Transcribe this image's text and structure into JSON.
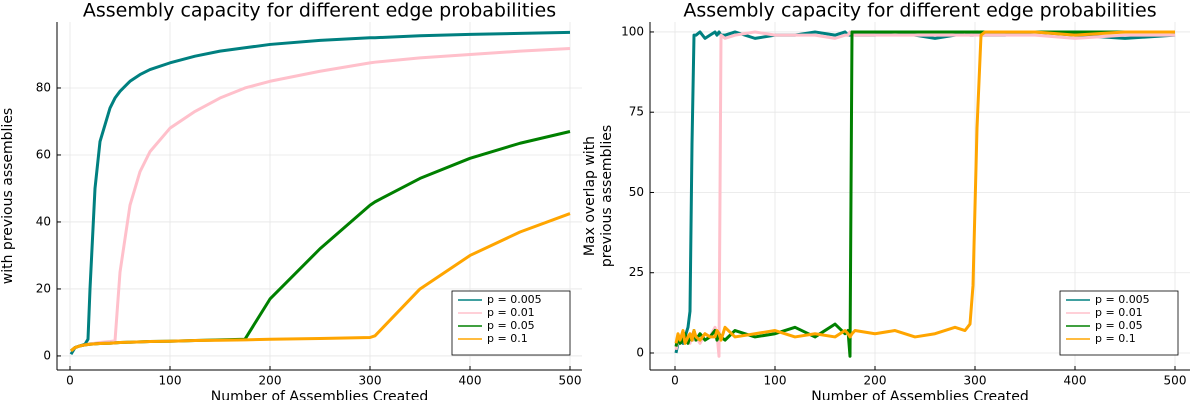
{
  "chart_data": [
    {
      "type": "line",
      "title": "Assembly capacity for different edge probabilities",
      "xlabel": "Number of Assemblies Created",
      "ylabel": [
        "with previous assemblies"
      ],
      "x": [
        1,
        5,
        10,
        15,
        18,
        20,
        25,
        30,
        40,
        45,
        50,
        60,
        70,
        80,
        100,
        125,
        150,
        175,
        200,
        250,
        300,
        305,
        350,
        400,
        450,
        500
      ],
      "series": [
        {
          "name": "p = 0.005",
          "color": "#008080",
          "values": [
            0.5,
            2.5,
            3,
            3.5,
            5,
            20,
            50,
            64,
            74,
            77,
            79,
            82,
            84,
            85.5,
            87.5,
            89.5,
            91,
            92,
            93,
            94.2,
            95,
            95,
            95.6,
            96,
            96.3,
            96.6
          ]
        },
        {
          "name": "p = 0.01",
          "color": "#ffc0cb",
          "values": [
            1.5,
            2.5,
            3,
            3.3,
            3.5,
            3.6,
            3.8,
            4,
            4.3,
            4.5,
            25,
            45,
            55,
            61,
            68,
            73,
            77,
            80,
            82,
            85,
            87.5,
            87.7,
            89,
            90,
            91,
            91.8
          ]
        },
        {
          "name": "p = 0.05",
          "color": "#008000",
          "values": [
            1.5,
            2.5,
            3,
            3.3,
            3.4,
            3.5,
            3.6,
            3.7,
            3.8,
            3.9,
            4,
            4.1,
            4.2,
            4.3,
            4.4,
            4.6,
            4.8,
            5,
            17,
            32,
            45,
            46,
            53,
            59,
            63.5,
            67
          ]
        },
        {
          "name": "p = 0.1",
          "color": "#ffa500",
          "values": [
            1.5,
            2.5,
            3,
            3.3,
            3.4,
            3.5,
            3.6,
            3.7,
            3.8,
            3.9,
            4,
            4.1,
            4.2,
            4.3,
            4.4,
            4.6,
            4.7,
            4.8,
            5,
            5.2,
            5.5,
            6,
            20,
            30,
            37,
            42.5
          ]
        }
      ],
      "xlim": [
        -13,
        512
      ],
      "xticks": [
        0,
        100,
        200,
        300,
        400,
        500
      ],
      "ylim": [
        -4.2,
        99.7
      ],
      "yticks": [
        0,
        20,
        40,
        60,
        80
      ],
      "grid": true,
      "legend": "bottom-right"
    },
    {
      "type": "line",
      "title": "Assembly capacity for different edge probabilities",
      "xlabel": "Number of Assemblies Created",
      "ylabel": [
        "Max overlap with",
        "previous assemblies"
      ],
      "x": [
        1,
        3,
        5,
        8,
        10,
        13,
        15,
        17,
        19,
        21,
        25,
        30,
        35,
        40,
        42,
        44,
        46,
        50,
        60,
        80,
        100,
        120,
        140,
        160,
        170,
        173,
        175,
        177,
        180,
        200,
        220,
        240,
        260,
        280,
        290,
        295,
        298,
        302,
        306,
        310,
        330,
        360,
        400,
        450,
        500
      ],
      "series": [
        {
          "name": "p = 0.005",
          "color": "#008080",
          "values": [
            0,
            3,
            4,
            3,
            5,
            8,
            13,
            65,
            99,
            99,
            100,
            98,
            99,
            100,
            99,
            100,
            99,
            99,
            100,
            98,
            99,
            99,
            100,
            99,
            100,
            99,
            99,
            100,
            99,
            99,
            100,
            99,
            98,
            99,
            100,
            99,
            99,
            100,
            99,
            99,
            99,
            100,
            99,
            98,
            99
          ]
        },
        {
          "name": "p = 0.01",
          "color": "#ffc0cb",
          "values": [
            1,
            4,
            3,
            5,
            4,
            5,
            3,
            6,
            4,
            5,
            3,
            6,
            5,
            8,
            6,
            -1,
            99,
            98,
            99,
            100,
            99,
            99,
            99,
            98,
            99,
            99,
            100,
            99,
            99,
            99,
            99,
            99,
            99,
            99,
            99,
            99,
            99,
            99,
            99,
            99,
            99,
            99,
            98,
            99,
            99
          ]
        },
        {
          "name": "p = 0.05",
          "color": "#008000",
          "values": [
            2,
            5,
            3,
            4,
            6,
            3,
            5,
            4,
            7,
            4,
            6,
            4,
            5,
            7,
            4,
            6,
            5,
            4,
            7,
            5,
            6,
            8,
            5,
            9,
            6,
            7,
            -1,
            100,
            100,
            100,
            100,
            100,
            100,
            100,
            100,
            100,
            100,
            100,
            100,
            100,
            100,
            100,
            100,
            100,
            100
          ]
        },
        {
          "name": "p = 0.1",
          "color": "#ffa500",
          "values": [
            3,
            6,
            4,
            7,
            3,
            5,
            6,
            4,
            7,
            5,
            4,
            6,
            5,
            5,
            7,
            6,
            4,
            8,
            5,
            6,
            7,
            5,
            6,
            5,
            7,
            6,
            5,
            6,
            7,
            6,
            7,
            5,
            6,
            8,
            7,
            9,
            21,
            70,
            99,
            100,
            100,
            100,
            99,
            100,
            100
          ]
        }
      ],
      "xlim": [
        -25,
        515
      ],
      "xticks": [
        0,
        100,
        200,
        300,
        400,
        500
      ],
      "ylim": [
        -5.3,
        103.1
      ],
      "yticks": [
        0,
        25,
        50,
        75,
        100
      ],
      "grid": true,
      "legend": "bottom-right"
    }
  ]
}
